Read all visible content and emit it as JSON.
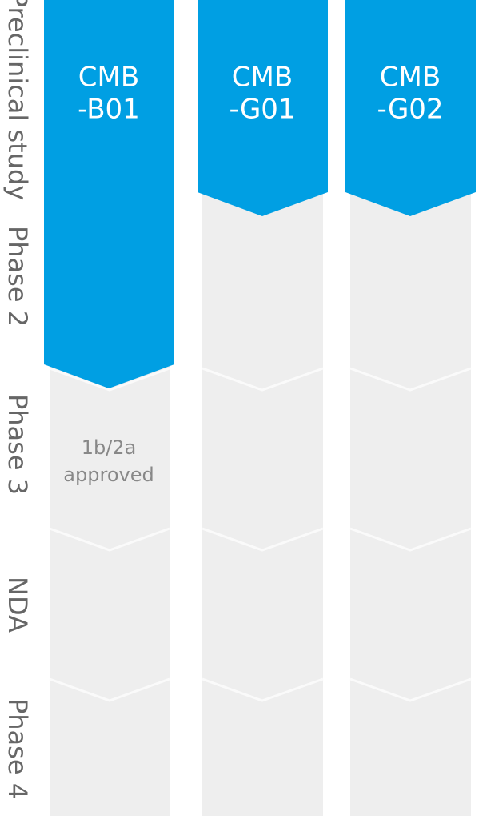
{
  "stages": [
    "Preclinical study",
    "Phase 2",
    "Phase 3",
    "NDA",
    "Phase 4"
  ],
  "programs": [
    {
      "name": [
        "CMB",
        "-B01"
      ],
      "note": [
        "1b/2a",
        "approved"
      ]
    },
    {
      "name": [
        "CMB",
        "-G01"
      ]
    },
    {
      "name": [
        "CMB",
        "-G02"
      ]
    }
  ]
}
